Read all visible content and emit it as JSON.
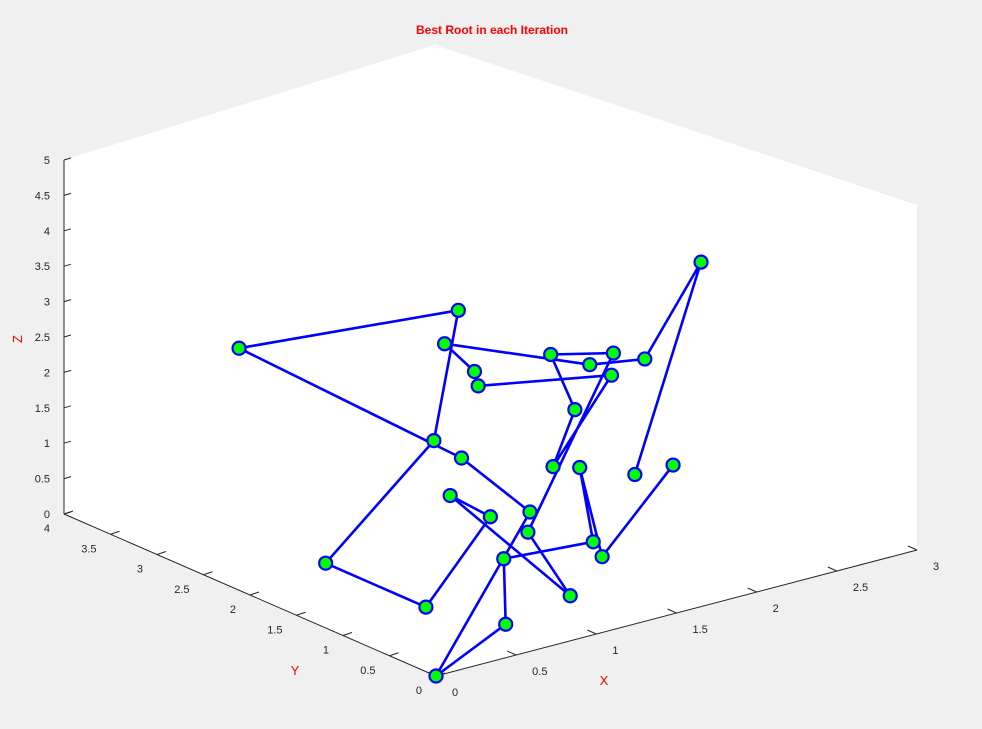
{
  "chart_data": {
    "type": "line3d",
    "title": "Best Root in each Iteration",
    "xlabel": "X",
    "ylabel": "Y",
    "zlabel": "Z",
    "xlim": [
      0,
      3
    ],
    "ylim": [
      0,
      4
    ],
    "zlim": [
      0,
      5
    ],
    "xticks": [
      "0",
      "0.5",
      "1",
      "1.5",
      "2",
      "2.5",
      "3"
    ],
    "yticks": [
      "0",
      "0.5",
      "1",
      "1.5",
      "2",
      "2.5",
      "3",
      "3.5",
      "4"
    ],
    "zticks": [
      "0",
      "0.5",
      "1",
      "1.5",
      "2",
      "2.5",
      "3",
      "3.5",
      "4",
      "4.5",
      "5"
    ],
    "label_color": "#ff0000",
    "line_color": "#0000ff",
    "marker_face_color": "#00ff00",
    "marker_edge_color": "#0000ff",
    "grid": false,
    "series": [
      {
        "points": [
          {
            "x": 2.0,
            "y": 1.31,
            "z": 0.91
          },
          {
            "x": 2.03,
            "y": 0.65,
            "z": 4.27
          },
          {
            "x": 1.54,
            "y": 0.41,
            "z": 3.33
          },
          {
            "x": 1.11,
            "y": 0.26,
            "z": 3.59
          },
          {
            "x": 0.39,
            "y": 0.58,
            "z": 4.13
          },
          {
            "x": 0.53,
            "y": 0.5,
            "z": 3.7
          },
          {
            "x": 0.53,
            "y": 0.46,
            "z": 3.52
          },
          {
            "x": 1.17,
            "y": 0.13,
            "z": 3.48
          },
          {
            "x": 0.91,
            "y": 0.31,
            "z": 2.24
          },
          {
            "x": 1.22,
            "y": 0.61,
            "z": 2.69
          },
          {
            "x": 1.22,
            "y": 0.87,
            "z": 3.32
          },
          {
            "x": 1.35,
            "y": 0.42,
            "z": 3.52
          },
          {
            "x": 0.84,
            "y": 0.46,
            "z": 1.27
          },
          {
            "x": 0.93,
            "y": 0.16,
            "z": 0.49
          },
          {
            "x": 0.39,
            "y": 0.52,
            "z": 2.02
          },
          {
            "x": 0.49,
            "y": 0.26,
            "z": 1.81
          },
          {
            "x": 0.14,
            "y": 0.35,
            "z": 0.69
          },
          {
            "x": 0.06,
            "y": 1.29,
            "z": 0.82
          },
          {
            "x": 0.59,
            "y": 1.04,
            "z": 2.38
          },
          {
            "x": 0.47,
            "y": 0.57,
            "z": 4.56
          },
          {
            "x": 0.1,
            "y": 2.29,
            "z": 3.26
          },
          {
            "x": 0.89,
            "y": 1.26,
            "z": 1.83
          },
          {
            "x": 0.94,
            "y": 0.61,
            "z": 1.41
          },
          {
            "x": 0.0,
            "y": 0.0,
            "z": 0.0
          },
          {
            "x": 0.69,
            "y": 0.44,
            "z": 0.07
          },
          {
            "x": 0.73,
            "y": 0.53,
            "z": 0.92
          },
          {
            "x": 1.23,
            "y": 0.43,
            "z": 0.92
          },
          {
            "x": 1.43,
            "y": 0.92,
            "z": 1.57
          },
          {
            "x": 1.1,
            "y": 0.11,
            "z": 0.97
          },
          {
            "x": 1.67,
            "y": 0.33,
            "z": 1.8
          }
        ]
      }
    ]
  }
}
